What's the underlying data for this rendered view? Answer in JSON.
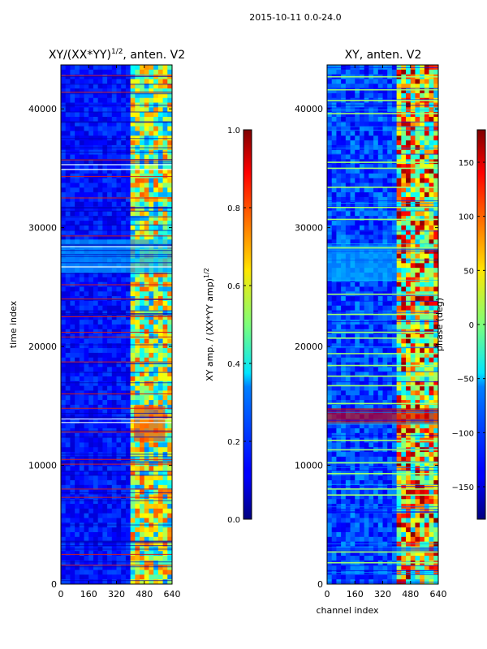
{
  "figure_title": "2015-10-11 0.0-24.0",
  "chart_data": [
    {
      "type": "heatmap",
      "title_text": "XY/(XX*YY)",
      "title_sup": "1/2",
      "title_tail": ", anten. V2",
      "xlabel": "",
      "ylabel": "time index",
      "xlim": [
        0,
        640
      ],
      "ylim": [
        0,
        43700
      ],
      "xticks": [
        0,
        160,
        320,
        480,
        640
      ],
      "yticks": [
        0,
        10000,
        20000,
        30000,
        40000
      ],
      "colorbar": {
        "label_text": "XY amp. / (XX*YY amp)",
        "label_sup": "1/2",
        "vmin": 0.0,
        "vmax": 1.0,
        "ticks": [
          0.0,
          0.2,
          0.4,
          0.6,
          0.8,
          1.0
        ],
        "tick_labels": [
          "0.0",
          "0.2",
          "0.4",
          "0.6",
          "0.8",
          "1.0"
        ],
        "colormap": "jet"
      },
      "regions": [
        {
          "x": [
            0,
            410
          ],
          "y": [
            0,
            43700
          ],
          "value": 0.1
        },
        {
          "x": [
            410,
            640
          ],
          "y": [
            0,
            43700
          ],
          "value": 0.38
        },
        {
          "x": [
            0,
            640
          ],
          "y": [
            26200,
            29000
          ],
          "value": 0.3
        },
        {
          "x": [
            420,
            600
          ],
          "y": [
            12000,
            15000
          ],
          "value": 0.8
        }
      ],
      "red_lines_y": [
        1600,
        2500,
        7300,
        8000,
        10100,
        10500,
        12800,
        14800,
        16000,
        18700,
        20800,
        21200,
        22500,
        24000,
        25200,
        29300,
        32500,
        34300,
        35700,
        41400,
        42800
      ],
      "white_lines_y": [
        13600,
        13900,
        26700,
        28400,
        34900,
        35300
      ]
    },
    {
      "type": "heatmap",
      "title_text": "XY, anten. V2",
      "xlabel": "channel index",
      "ylabel": "",
      "xlim": [
        0,
        640
      ],
      "ylim": [
        0,
        43700
      ],
      "xticks": [
        0,
        160,
        320,
        480,
        640
      ],
      "yticks": [
        0,
        10000,
        20000,
        30000,
        40000
      ],
      "colorbar": {
        "label_text": "phase (deg)",
        "vmin": -180,
        "vmax": 180,
        "ticks": [
          -150,
          -100,
          -50,
          0,
          50,
          100,
          150
        ],
        "tick_labels": [
          "−150",
          "−100",
          "−50",
          "0",
          "50",
          "100",
          "150"
        ],
        "colormap": "jet"
      },
      "regions": [
        {
          "x": [
            0,
            400
          ],
          "y": [
            0,
            43700
          ],
          "value": -130
        },
        {
          "x": [
            400,
            640
          ],
          "y": [
            0,
            43700
          ],
          "value": 40
        },
        {
          "x": [
            0,
            640
          ],
          "y": [
            13500,
            14800
          ],
          "value": 150
        },
        {
          "x": [
            0,
            400
          ],
          "y": [
            25500,
            28500
          ],
          "value": -70
        }
      ],
      "green_lines_y": [
        1800,
        2700,
        7500,
        8000,
        9300,
        10200,
        11300,
        12100,
        15200,
        16700,
        17500,
        18400,
        19400,
        20700,
        21200,
        22700,
        24400,
        28300,
        30700,
        31700,
        33400,
        35000,
        35500,
        39600,
        40700,
        41600,
        42700
      ]
    }
  ],
  "colors": {
    "jet_dark_blue": "#00007f",
    "jet_blue": "#0000ff",
    "jet_cyan": "#00ffff",
    "jet_yellow": "#ffff00",
    "jet_red": "#ff0000",
    "jet_dark_red": "#7f0000",
    "red_line": "#cc2020",
    "green_line": "#a0ff70"
  }
}
